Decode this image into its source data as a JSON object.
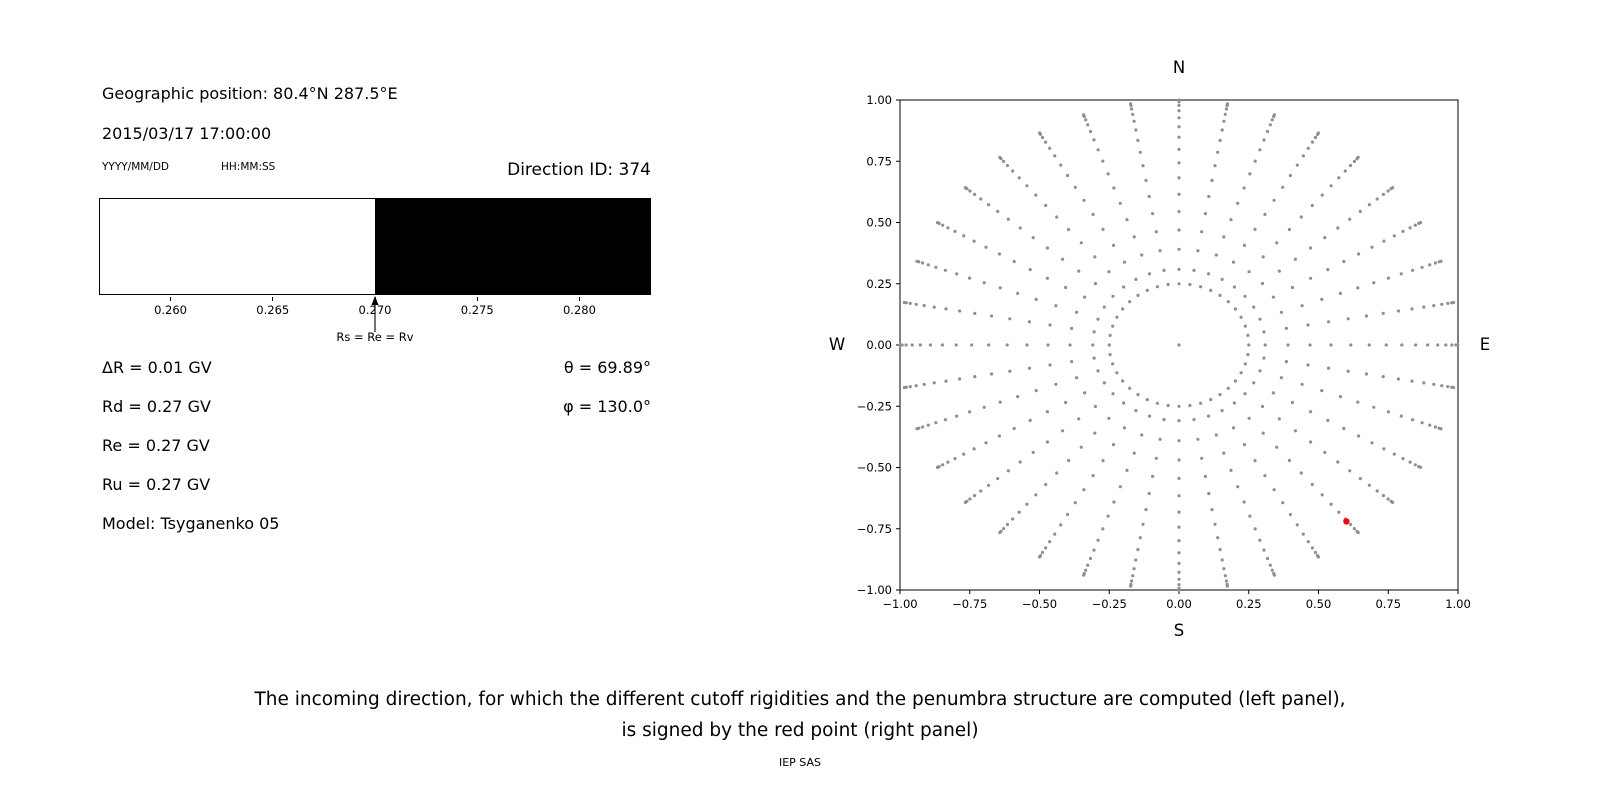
{
  "left_panel": {
    "geo_position": "Geographic position: 80.4°N 287.5°E",
    "datetime": "2015/03/17 17:00:00",
    "date_format_label": "YYYY/MM/DD",
    "time_format_label": "HH:MM:SS",
    "direction_id": "Direction ID: 374",
    "arrow_label": "Rs = Re = Rv",
    "delta_r": "ΔR = 0.01 GV",
    "rd": "Rd = 0.27 GV",
    "re": "Re = 0.27 GV",
    "ru": "Ru = 0.27 GV",
    "model": "Model: Tsyganenko 05",
    "theta": "θ = 69.89°",
    "phi": "φ = 130.0°"
  },
  "caption": {
    "line1": "The incoming direction, for which the different cutoff rigidities and the penumbra structure are computed (left panel),",
    "line2": "is signed by the red point (right panel)",
    "credit": "IEP SAS"
  },
  "chart_data": [
    {
      "type": "bar",
      "name": "penumbra-structure",
      "x_range": [
        0.2565,
        0.2835
      ],
      "boundary": 0.27,
      "xticks": [
        0.26,
        0.265,
        0.27,
        0.275,
        0.28
      ],
      "xtick_labels": [
        "0.260",
        "0.265",
        "0.270",
        "0.275",
        "0.280"
      ],
      "segments": [
        {
          "from": 0.2565,
          "to": 0.27,
          "color": "#ffffff"
        },
        {
          "from": 0.27,
          "to": 0.2835,
          "color": "#000000"
        }
      ],
      "annotation": {
        "x": 0.27,
        "label": "Rs = Re = Rv"
      },
      "units": "GV"
    },
    {
      "type": "scatter",
      "name": "incoming-direction-grid",
      "xlim": [
        -1,
        1
      ],
      "ylim": [
        -1,
        1
      ],
      "xticks": [
        -1,
        -0.75,
        -0.5,
        -0.25,
        0,
        0.25,
        0.5,
        0.75,
        1
      ],
      "xtick_labels": [
        "−1.00",
        "−0.75",
        "−0.50",
        "−0.25",
        "0.00",
        "0.25",
        "0.50",
        "0.75",
        "1.00"
      ],
      "yticks": [
        1,
        0.75,
        0.5,
        0.25,
        0,
        -0.25,
        -0.5,
        -0.75,
        -1
      ],
      "ytick_labels": [
        "1.00",
        "0.75",
        "0.50",
        "0.25",
        "0.00",
        "−0.25",
        "−0.50",
        "−0.75",
        "−1.00"
      ],
      "compass": {
        "top": "N",
        "bottom": "S",
        "left": "W",
        "right": "E"
      },
      "grid_points": {
        "color": "#8f8f8f",
        "dot_radius": 1.6,
        "center": [
          0,
          0
        ],
        "inner_ring": {
          "radius": 0.25,
          "count": 40
        },
        "spokes": {
          "count": 36,
          "start_deg": 0,
          "step_deg": 10,
          "zenith_from_deg": 18,
          "zenith_to_deg": 88,
          "zenith_step_deg": 5,
          "radius": "sin(zenith)"
        }
      },
      "red_point": {
        "x": 0.6,
        "y": -0.72,
        "color": "#ff0000"
      }
    }
  ]
}
